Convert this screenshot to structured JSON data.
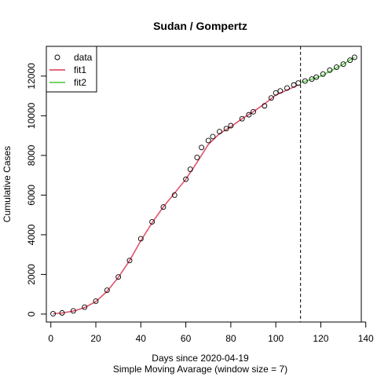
{
  "chart_data": {
    "type": "scatter",
    "title": "Sudan / Gompertz",
    "xlabel": "Days since 2020-04-19",
    "xlabel2": "Simple Moving Avarage (window size = 7)",
    "ylabel": "Cumulative Cases",
    "xlim": [
      -2,
      138
    ],
    "ylim": [
      -400,
      13500
    ],
    "xticks": [
      0,
      20,
      40,
      60,
      80,
      100,
      120,
      140
    ],
    "xtick_labels": [
      "0",
      "20",
      "40",
      "60",
      "80",
      "100",
      "120",
      "140"
    ],
    "yticks": [
      0,
      2000,
      4000,
      6000,
      8000,
      10000,
      12000
    ],
    "ytick_labels": [
      "0",
      "2000",
      "4000",
      "6000",
      "8000",
      "10000",
      "12000"
    ],
    "vline_x": 111,
    "legend": {
      "position": "top-left",
      "entries": [
        {
          "label": "data",
          "kind": "point"
        },
        {
          "label": "fit1",
          "kind": "line",
          "color": "#DF536B"
        },
        {
          "label": "fit2",
          "kind": "line",
          "color": "#61D04F"
        }
      ]
    },
    "series": [
      {
        "name": "data",
        "kind": "points",
        "x": [
          1,
          5,
          10,
          15,
          20,
          25,
          30,
          35,
          40,
          45,
          50,
          55,
          60,
          62,
          65,
          67,
          70,
          72,
          75,
          78,
          80,
          85,
          88,
          90,
          95,
          98,
          100,
          102,
          105,
          108,
          110,
          113,
          116,
          118,
          121,
          124,
          127,
          130,
          133,
          135
        ],
        "y": [
          20,
          60,
          160,
          350,
          650,
          1200,
          1870,
          2700,
          3800,
          4650,
          5400,
          6000,
          6800,
          7300,
          7900,
          8400,
          8750,
          8950,
          9200,
          9350,
          9500,
          9850,
          10050,
          10200,
          10500,
          10900,
          11150,
          11250,
          11400,
          11550,
          11650,
          11750,
          11850,
          11950,
          12100,
          12300,
          12450,
          12600,
          12800,
          12950
        ]
      },
      {
        "name": "fit1",
        "kind": "line",
        "color": "#DF536B",
        "x": [
          1,
          5,
          10,
          15,
          20,
          25,
          30,
          35,
          40,
          45,
          50,
          55,
          60,
          65,
          70,
          75,
          80,
          85,
          90,
          95,
          100,
          105,
          110
        ],
        "y": [
          20,
          55,
          150,
          330,
          630,
          1150,
          1850,
          2700,
          3700,
          4600,
          5400,
          6100,
          6800,
          7650,
          8550,
          9100,
          9450,
          9850,
          10200,
          10600,
          11050,
          11300,
          11550
        ]
      },
      {
        "name": "fit2",
        "kind": "line",
        "color": "#61D04F",
        "x": [
          111,
          115,
          120,
          125,
          130,
          135
        ],
        "y": [
          11680,
          11800,
          12000,
          12300,
          12600,
          12950
        ]
      }
    ]
  }
}
